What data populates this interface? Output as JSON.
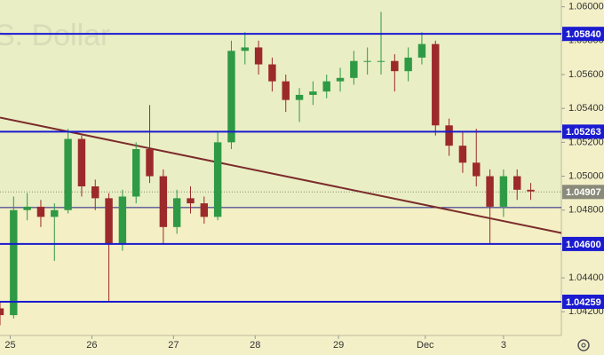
{
  "chart_data": {
    "type": "candlestick",
    "watermark": "S. Dollar",
    "x": [
      0,
      4,
      8,
      12,
      16,
      20,
      24,
      28,
      32,
      36,
      40,
      44,
      48,
      52,
      56,
      60,
      64,
      68,
      72,
      76,
      80,
      84,
      88,
      92,
      96,
      100,
      104,
      108,
      112,
      116,
      120,
      124,
      128,
      132,
      136,
      140,
      144,
      148,
      152,
      156
    ],
    "open": [
      1.0422,
      1.0418,
      1.048,
      1.0482,
      1.0476,
      1.048,
      1.0522,
      1.0494,
      1.0487,
      1.046,
      1.0488,
      1.0516,
      1.05,
      1.047,
      1.0487,
      1.0484,
      1.0476,
      1.052,
      1.0574,
      1.0576,
      1.0566,
      1.0556,
      1.0545,
      1.0548,
      1.055,
      1.0556,
      1.0558,
      1.0568,
      1.0568,
      1.0568,
      1.0562,
      1.057,
      1.0578,
      1.053,
      1.0518,
      1.0508,
      1.05,
      1.0482,
      1.05,
      1.0492
    ],
    "high": [
      1.0426,
      1.0488,
      1.049,
      1.0486,
      1.0484,
      1.0528,
      1.0524,
      1.0498,
      1.049,
      1.0492,
      1.052,
      1.0542,
      1.0504,
      1.0492,
      1.0494,
      1.0488,
      1.0526,
      1.058,
      1.0585,
      1.058,
      1.057,
      1.056,
      1.0552,
      1.0556,
      1.056,
      1.0564,
      1.0574,
      1.0576,
      1.0597,
      1.0572,
      1.0576,
      1.0585,
      1.058,
      1.0534,
      1.0526,
      1.0528,
      1.0504,
      1.0504,
      1.0504,
      1.0496
    ],
    "low": [
      1.0412,
      1.0416,
      1.0474,
      1.047,
      1.045,
      1.0478,
      1.0488,
      1.048,
      1.0426,
      1.0456,
      1.0484,
      1.0496,
      1.046,
      1.0466,
      1.0478,
      1.0472,
      1.0474,
      1.0516,
      1.0566,
      1.056,
      1.055,
      1.0538,
      1.0532,
      1.0542,
      1.0546,
      1.055,
      1.0554,
      1.056,
      1.056,
      1.055,
      1.0556,
      1.0566,
      1.0524,
      1.0512,
      1.0502,
      1.0494,
      1.046,
      1.0476,
      1.0486,
      1.0486
    ],
    "close": [
      1.0418,
      1.048,
      1.0482,
      1.0476,
      1.048,
      1.0522,
      1.0494,
      1.0487,
      1.046,
      1.0488,
      1.0516,
      1.05,
      1.047,
      1.0487,
      1.0484,
      1.0476,
      1.052,
      1.0574,
      1.0576,
      1.0566,
      1.0556,
      1.0545,
      1.0548,
      1.055,
      1.0556,
      1.0558,
      1.0568,
      1.0568,
      1.0568,
      1.0562,
      1.057,
      1.0578,
      1.053,
      1.0518,
      1.0508,
      1.05,
      1.0482,
      1.05,
      1.0492,
      1.0491
    ],
    "up_color": "#2f9a45",
    "down_color": "#9c2a2a",
    "xlim": [
      0,
      165
    ],
    "xticks": [
      {
        "value": 3,
        "label": "25"
      },
      {
        "value": 27,
        "label": "26"
      },
      {
        "value": 51,
        "label": "27"
      },
      {
        "value": 75,
        "label": "28"
      },
      {
        "value": 99.5,
        "label": "29"
      },
      {
        "value": 125,
        "label": "Dec"
      },
      {
        "value": 148,
        "label": "3"
      }
    ],
    "ylim": [
      1.0406,
      1.0604
    ],
    "yticks": [
      {
        "value": 1.06,
        "label": "1.06000"
      },
      {
        "value": 1.058,
        "label": "1.05800"
      },
      {
        "value": 1.056,
        "label": "1.05600"
      },
      {
        "value": 1.054,
        "label": "1.05400"
      },
      {
        "value": 1.052,
        "label": "1.05200"
      },
      {
        "value": 1.05,
        "label": "1.05000"
      },
      {
        "value": 1.048,
        "label": "1.04800"
      },
      {
        "value": 1.046,
        "label": "1.04600"
      },
      {
        "value": 1.044,
        "label": "1.04400"
      },
      {
        "value": 1.042,
        "label": "1.04200"
      }
    ],
    "levels": [
      {
        "value": 1.0584,
        "label": "1.05840"
      },
      {
        "value": 1.05263,
        "label": "1.05263"
      },
      {
        "value": 1.046,
        "label": "1.04600"
      },
      {
        "value": 1.04259,
        "label": "1.04259"
      }
    ],
    "level_color": "#1a1ad0",
    "support_line": 1.04815,
    "price_line": {
      "value": 1.04907,
      "label": "1.04907"
    },
    "trendline": {
      "x": [
        0,
        165
      ],
      "values": [
        1.05346,
        1.04665
      ],
      "color": "#7b2c2c"
    }
  }
}
